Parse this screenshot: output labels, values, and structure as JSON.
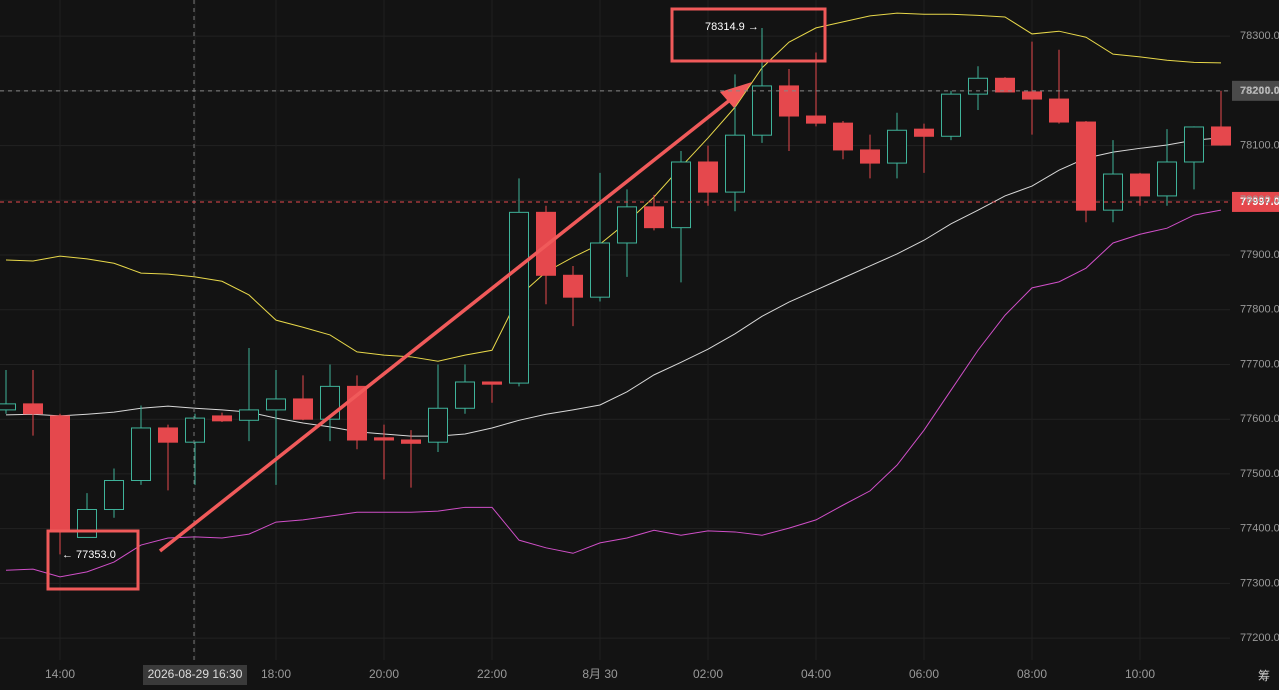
{
  "chart_data": {
    "type": "candlestick",
    "categories": [
      null,
      null,
      "14:00",
      null,
      null,
      null,
      null,
      "2026-08-29 16:30",
      null,
      null,
      "18:00",
      null,
      null,
      null,
      "20:00",
      null,
      null,
      null,
      "22:00",
      null,
      null,
      null,
      "8月 30",
      null,
      null,
      null,
      "02:00",
      null,
      null,
      null,
      "04:00",
      null,
      null,
      null,
      "06:00",
      null,
      null,
      null,
      "08:00",
      null,
      null,
      null,
      "10:00",
      null,
      null,
      null
    ],
    "open": [
      77617,
      77628,
      77606,
      77384,
      77435,
      77488,
      77584,
      77558,
      77606,
      77598,
      77617,
      77637,
      77600,
      77660,
      77566,
      77562,
      77558,
      77620,
      77668,
      77666,
      77978,
      77863,
      77823,
      77922,
      77988,
      77950,
      78070,
      78015,
      78119,
      78209,
      78154,
      78141,
      78092,
      78068,
      78130,
      78117,
      78194,
      78223,
      78198,
      78185,
      78143,
      77982,
      78048,
      78008,
      78070,
      78134
    ],
    "high": [
      77690,
      77690,
      77610,
      77465,
      77510,
      77625,
      77590,
      77610,
      77612,
      77730,
      77690,
      77680,
      77700,
      77680,
      77590,
      77580,
      77700,
      77700,
      77668,
      78040,
      77990,
      77880,
      78050,
      78020,
      78010,
      78090,
      78100,
      78230,
      78314.9,
      78240,
      78270,
      78145,
      78120,
      78160,
      78140,
      78200,
      78245,
      78225,
      78290,
      78275,
      78145,
      78110,
      78050,
      78130,
      78135,
      78200
    ],
    "low": [
      77610,
      77570,
      77353,
      77384,
      77420,
      77480,
      77470,
      77480,
      77595,
      77560,
      77480,
      77598,
      77560,
      77545,
      77490,
      77475,
      77540,
      77610,
      77630,
      77660,
      77810,
      77770,
      77815,
      77860,
      77945,
      77850,
      77990,
      77980,
      78105,
      78090,
      78135,
      78075,
      78040,
      78040,
      78050,
      78110,
      78165,
      78198,
      78120,
      78140,
      77960,
      77960,
      77990,
      77990,
      78020,
      78100
    ],
    "close": [
      77628,
      77610,
      77397,
      77435,
      77488,
      77584,
      77558,
      77602,
      77597,
      77617,
      77637,
      77600,
      77660,
      77562,
      77562,
      77556,
      77620,
      77668,
      77664,
      77978,
      77863,
      77823,
      77922,
      77988,
      77950,
      78070,
      78015,
      78119,
      78209,
      78154,
      78141,
      78092,
      78068,
      78128,
      78117,
      78194,
      78223,
      78198,
      78185,
      78143,
      77982,
      78048,
      78008,
      78070,
      78134,
      78101
    ],
    "up_color": "#3fb39a",
    "down_color": "#e5484d",
    "bands": [
      {
        "color": "#e8d84a",
        "values": [
          77891,
          77889,
          77898,
          77893,
          77885,
          77867,
          77865,
          77860,
          77852,
          77827,
          77781,
          77768,
          77754,
          77723,
          77717,
          77714,
          77706,
          77717,
          77726,
          77825,
          77869,
          77896,
          77920,
          77960,
          78006,
          78061,
          78114,
          78170,
          78242,
          78289,
          78315,
          78326,
          78337,
          78342,
          78340,
          78340,
          78338,
          78335,
          78304,
          78309,
          78298,
          78267,
          78262,
          78256,
          78252,
          78251
        ]
      },
      {
        "color": "#d8d8d8",
        "values": [
          77608,
          77609,
          77606,
          77609,
          77613,
          77620,
          77624,
          77620,
          77617,
          77613,
          77602,
          77593,
          77586,
          77577,
          77573,
          77569,
          77569,
          77573,
          77584,
          77598,
          77609,
          77617,
          77626,
          77650,
          77681,
          77704,
          77728,
          77756,
          77788,
          77814,
          77836,
          77858,
          77880,
          77902,
          77927,
          77957,
          77982,
          78008,
          78026,
          78055,
          78077,
          78088,
          78095,
          78101,
          78110,
          78114
        ]
      },
      {
        "color": "#d04fc8",
        "values": [
          77324,
          77326,
          77312,
          77321,
          77339,
          77370,
          77383,
          77385,
          77383,
          77390,
          77412,
          77416,
          77423,
          77430,
          77430,
          77430,
          77432,
          77439,
          77439,
          77379,
          77365,
          77355,
          77374,
          77383,
          77397,
          77388,
          77396,
          77394,
          77388,
          77401,
          77416,
          77443,
          77469,
          77516,
          77580,
          77653,
          77726,
          77790,
          77840,
          77851,
          77876,
          77922,
          77938,
          77949,
          77973,
          77982
        ]
      }
    ],
    "ylim": [
      77160,
      78366
    ],
    "yticks": [
      {
        "value": 77200,
        "label": "77200.0"
      },
      {
        "value": 77300,
        "label": "77300.0"
      },
      {
        "value": 77400,
        "label": "77400.0"
      },
      {
        "value": 77500,
        "label": "77500.0"
      },
      {
        "value": 77600,
        "label": "77600.0"
      },
      {
        "value": 77700,
        "label": "77700.0"
      },
      {
        "value": 77800,
        "label": "77800.0"
      },
      {
        "value": 77900,
        "label": "77900.0"
      },
      {
        "value": 78000,
        "label": "78000.0"
      },
      {
        "value": 78100,
        "label": "78100.0"
      },
      {
        "value": 78200,
        "label": "78200.0"
      },
      {
        "value": 78300,
        "label": "78300.0"
      }
    ],
    "grid": true,
    "price_lines": [
      {
        "value": 78200,
        "label": "78200.0",
        "color": "#4a4a4a"
      },
      {
        "value": 77997,
        "label": "77997.0",
        "color": "#e5484d"
      }
    ],
    "annotations": [
      "78314.9 →",
      "← 77353.0"
    ],
    "corner_label": "筹"
  }
}
